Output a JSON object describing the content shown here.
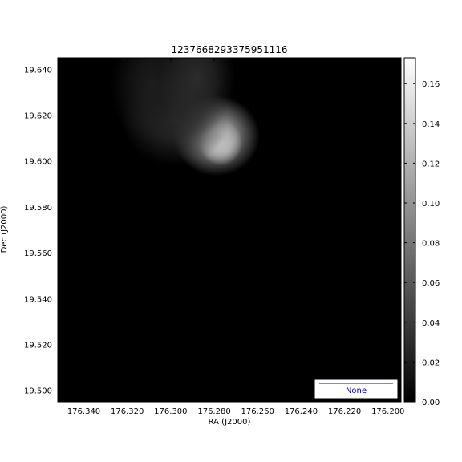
{
  "chart_data": {
    "type": "heatmap",
    "title": "1237668293375951116",
    "xlabel": "RA (J2000)",
    "ylabel": "Dec (J2000)",
    "xlim": [
      176.352,
      176.194
    ],
    "ylim": [
      19.495,
      19.645
    ],
    "x_ticks": [
      "176.340",
      "176.320",
      "176.300",
      "176.280",
      "176.260",
      "176.240",
      "176.220",
      "176.200"
    ],
    "x_tick_values": [
      176.34,
      176.32,
      176.3,
      176.28,
      176.26,
      176.24,
      176.22,
      176.2
    ],
    "y_ticks": [
      "19.500",
      "19.520",
      "19.540",
      "19.560",
      "19.580",
      "19.600",
      "19.620",
      "19.640"
    ],
    "y_tick_values": [
      19.5,
      19.52,
      19.54,
      19.56,
      19.58,
      19.6,
      19.62,
      19.64
    ],
    "colorbar": {
      "colormap": "gray",
      "range": [
        0.0,
        0.173
      ],
      "ticks": [
        "0.00",
        "0.02",
        "0.04",
        "0.06",
        "0.08",
        "0.10",
        "0.12",
        "0.14",
        "0.16"
      ],
      "tick_values": [
        0.0,
        0.02,
        0.04,
        0.06,
        0.08,
        0.1,
        0.12,
        0.14,
        0.16
      ]
    },
    "sources": [
      {
        "ra": 176.277,
        "dec": 19.608,
        "peak": 0.173,
        "sigma_ra": 0.004,
        "sigma_dec": 0.004
      },
      {
        "ra": 176.279,
        "dec": 19.611,
        "peak": 0.12,
        "sigma_ra": 0.008,
        "sigma_dec": 0.007
      },
      {
        "ra": 176.298,
        "dec": 19.618,
        "peak": 0.03,
        "sigma_ra": 0.01,
        "sigma_dec": 0.008
      },
      {
        "ra": 176.308,
        "dec": 19.633,
        "peak": 0.02,
        "sigma_ra": 0.008,
        "sigma_dec": 0.01
      },
      {
        "ra": 176.288,
        "dec": 19.636,
        "peak": 0.03,
        "sigma_ra": 0.007,
        "sigma_dec": 0.01
      }
    ],
    "legend": {
      "label": "None",
      "position": "lower-right",
      "color": "#0000cc"
    },
    "grid": false
  }
}
